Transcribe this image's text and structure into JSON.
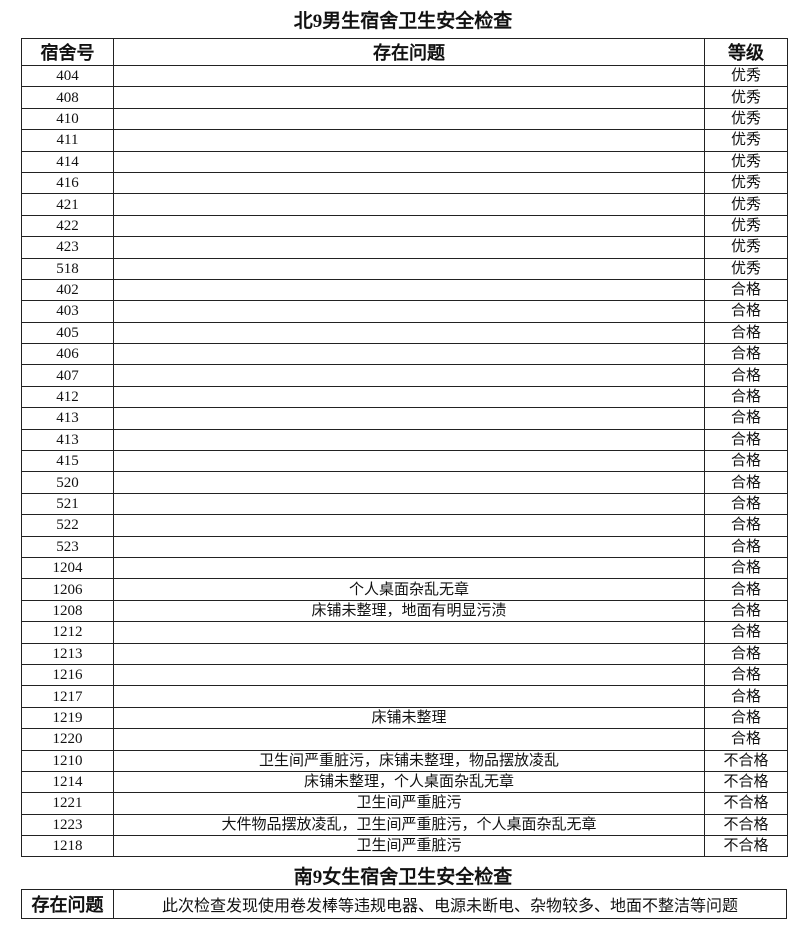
{
  "north": {
    "title": "北9男生宿舍卫生安全检查",
    "headers": [
      "宿舍号",
      "存在问题",
      "等级"
    ],
    "rows": [
      {
        "room": "404",
        "issue": "",
        "grade": "优秀"
      },
      {
        "room": "408",
        "issue": "",
        "grade": "优秀"
      },
      {
        "room": "410",
        "issue": "",
        "grade": "优秀"
      },
      {
        "room": "411",
        "issue": "",
        "grade": "优秀"
      },
      {
        "room": "414",
        "issue": "",
        "grade": "优秀"
      },
      {
        "room": "416",
        "issue": "",
        "grade": "优秀"
      },
      {
        "room": "421",
        "issue": "",
        "grade": "优秀"
      },
      {
        "room": "422",
        "issue": "",
        "grade": "优秀"
      },
      {
        "room": "423",
        "issue": "",
        "grade": "优秀"
      },
      {
        "room": "518",
        "issue": "",
        "grade": "优秀"
      },
      {
        "room": "402",
        "issue": "",
        "grade": "合格"
      },
      {
        "room": "403",
        "issue": "",
        "grade": "合格"
      },
      {
        "room": "405",
        "issue": "",
        "grade": "合格"
      },
      {
        "room": "406",
        "issue": "",
        "grade": "合格"
      },
      {
        "room": "407",
        "issue": "",
        "grade": "合格"
      },
      {
        "room": "412",
        "issue": "",
        "grade": "合格"
      },
      {
        "room": "413",
        "issue": "",
        "grade": "合格"
      },
      {
        "room": "413",
        "issue": "",
        "grade": "合格"
      },
      {
        "room": "415",
        "issue": "",
        "grade": "合格"
      },
      {
        "room": "520",
        "issue": "",
        "grade": "合格"
      },
      {
        "room": "521",
        "issue": "",
        "grade": "合格"
      },
      {
        "room": "522",
        "issue": "",
        "grade": "合格"
      },
      {
        "room": "523",
        "issue": "",
        "grade": "合格"
      },
      {
        "room": "1204",
        "issue": "",
        "grade": "合格"
      },
      {
        "room": "1206",
        "issue": "个人桌面杂乱无章",
        "grade": "合格"
      },
      {
        "room": "1208",
        "issue": "床铺未整理，地面有明显污渍",
        "grade": "合格"
      },
      {
        "room": "1212",
        "issue": "",
        "grade": "合格"
      },
      {
        "room": "1213",
        "issue": "",
        "grade": "合格"
      },
      {
        "room": "1216",
        "issue": "",
        "grade": "合格"
      },
      {
        "room": "1217",
        "issue": "",
        "grade": "合格"
      },
      {
        "room": "1219",
        "issue": "床铺未整理",
        "grade": "合格"
      },
      {
        "room": "1220",
        "issue": "",
        "grade": "合格"
      },
      {
        "room": "1210",
        "issue": "卫生间严重脏污，床铺未整理，物品摆放凌乱",
        "grade": "不合格"
      },
      {
        "room": "1214",
        "issue": "床铺未整理，个人桌面杂乱无章",
        "grade": "不合格"
      },
      {
        "room": "1221",
        "issue": "卫生间严重脏污",
        "grade": "不合格"
      },
      {
        "room": "1223",
        "issue": "大件物品摆放凌乱，卫生间严重脏污，个人桌面杂乱无章",
        "grade": "不合格"
      },
      {
        "room": "1218",
        "issue": "卫生间严重脏污",
        "grade": "不合格"
      }
    ]
  },
  "south": {
    "title": "南9女生宿舍卫生安全检查",
    "label": "存在问题",
    "issue": "此次检查发现使用卷发棒等违规电器、电源未断电、杂物较多、地面不整洁等问题"
  }
}
